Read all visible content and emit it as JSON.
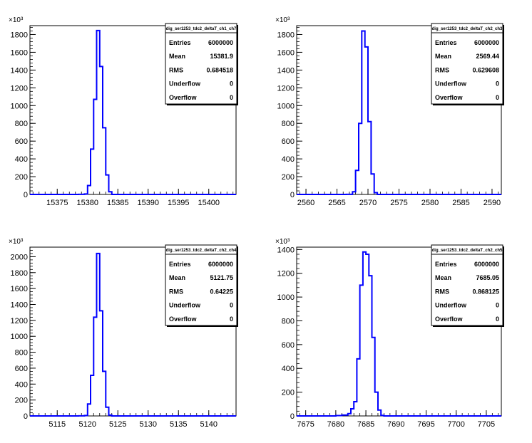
{
  "chart_data": [
    {
      "type": "line",
      "title": "dig_ser1253_tdc2_deltaT_ch1_ch7",
      "xlim": [
        15370.5,
        15404.5
      ],
      "xticks": [
        "15375",
        "15380",
        "15385",
        "15390",
        "15395",
        "15400"
      ],
      "xtick_values": [
        15375,
        15380,
        15385,
        15390,
        15395,
        15400
      ],
      "ylim": [
        0,
        1900
      ],
      "yticks": [
        "0",
        "200",
        "400",
        "600",
        "800",
        "1000",
        "1200",
        "1400",
        "1600",
        "1800"
      ],
      "ytick_values": [
        0,
        200,
        400,
        600,
        800,
        1000,
        1200,
        1400,
        1600,
        1800
      ],
      "yexponent": "×10³",
      "bin_edges": [
        15378.5,
        15379.5,
        15380.0,
        15380.5,
        15381.0,
        15381.5,
        15382.0,
        15382.5,
        15383.0,
        15383.5,
        15384.0
      ],
      "counts": [
        0.5,
        5,
        100,
        510,
        1070,
        1845,
        1440,
        750,
        220,
        30
      ],
      "stats": {
        "rows": [
          {
            "label": "Entries",
            "value": "6000000"
          },
          {
            "label": "Mean",
            "value": "15381.9"
          },
          {
            "label": "RMS",
            "value": "0.684518"
          },
          {
            "label": "Underflow",
            "value": "0"
          },
          {
            "label": "Overflow",
            "value": "0"
          }
        ]
      }
    },
    {
      "type": "line",
      "title": "dig_ser1253_tdc2_deltaT_ch2_ch3",
      "xlim": [
        2558.5,
        2591.5
      ],
      "xticks": [
        "2560",
        "2565",
        "2570",
        "2575",
        "2580",
        "2585",
        "2590"
      ],
      "xtick_values": [
        2560,
        2565,
        2570,
        2575,
        2580,
        2585,
        2590
      ],
      "ylim": [
        0,
        1900
      ],
      "yticks": [
        "0",
        "200",
        "400",
        "600",
        "800",
        "1000",
        "1200",
        "1400",
        "1600",
        "1800"
      ],
      "ytick_values": [
        0,
        200,
        400,
        600,
        800,
        1000,
        1200,
        1400,
        1600,
        1800
      ],
      "yexponent": "×10³",
      "bin_edges": [
        2566.5,
        2567.5,
        2568.0,
        2568.5,
        2569.0,
        2569.5,
        2570.0,
        2570.5,
        2571.0,
        2571.5
      ],
      "counts": [
        1,
        30,
        270,
        800,
        1840,
        1660,
        820,
        230,
        20
      ],
      "stats": {
        "rows": [
          {
            "label": "Entries",
            "value": "6000000"
          },
          {
            "label": "Mean",
            "value": "2569.44"
          },
          {
            "label": "RMS",
            "value": "0.629608"
          },
          {
            "label": "Underflow",
            "value": "0"
          },
          {
            "label": "Overflow",
            "value": "0"
          }
        ]
      }
    },
    {
      "type": "line",
      "title": "dig_ser1253_tdc2_deltaT_ch2_ch4",
      "xlim": [
        5110.5,
        5144.5
      ],
      "xticks": [
        "5115",
        "5120",
        "5125",
        "5130",
        "5135",
        "5140"
      ],
      "xtick_values": [
        5115,
        5120,
        5125,
        5130,
        5135,
        5140
      ],
      "ylim": [
        0,
        2120
      ],
      "yticks": [
        "0",
        "200",
        "400",
        "600",
        "800",
        "1000",
        "1200",
        "1400",
        "1600",
        "1800",
        "2000"
      ],
      "ytick_values": [
        0,
        200,
        400,
        600,
        800,
        1000,
        1200,
        1400,
        1600,
        1800,
        2000
      ],
      "yexponent": "×10³",
      "bin_edges": [
        5118.5,
        5119.5,
        5120.0,
        5120.5,
        5121.0,
        5121.5,
        5122.0,
        5122.5,
        5123.0,
        5123.5,
        5124.0
      ],
      "counts": [
        0.5,
        5,
        150,
        510,
        1240,
        2040,
        1320,
        560,
        110,
        10
      ],
      "stats": {
        "rows": [
          {
            "label": "Entries",
            "value": "6000000"
          },
          {
            "label": "Mean",
            "value": "5121.75"
          },
          {
            "label": "RMS",
            "value": "0.64225"
          },
          {
            "label": "Underflow",
            "value": "0"
          },
          {
            "label": "Overflow",
            "value": "0"
          }
        ]
      }
    },
    {
      "type": "line",
      "title": "dig_ser1253_tdc2_deltaT_ch2_ch5",
      "xlim": [
        7673.5,
        7707.5
      ],
      "xticks": [
        "7675",
        "7680",
        "7685",
        "7690",
        "7695",
        "7700",
        "7705"
      ],
      "xtick_values": [
        7675,
        7680,
        7685,
        7690,
        7695,
        7700,
        7705
      ],
      "ylim": [
        0,
        1420
      ],
      "yticks": [
        "0",
        "200",
        "400",
        "600",
        "800",
        "1000",
        "1200",
        "1400"
      ],
      "ytick_values": [
        0,
        200,
        400,
        600,
        800,
        1000,
        1200,
        1400
      ],
      "yexponent": "×10³",
      "bin_edges": [
        7680.0,
        7681.0,
        7682.0,
        7682.5,
        7683.0,
        7683.5,
        7684.0,
        7684.5,
        7685.0,
        7685.5,
        7686.0,
        7686.5,
        7687.0,
        7687.5,
        7688.0
      ],
      "counts": [
        3,
        8,
        20,
        60,
        120,
        480,
        1100,
        1380,
        1360,
        1180,
        660,
        200,
        50,
        5
      ],
      "stats": {
        "rows": [
          {
            "label": "Entries",
            "value": "6000000"
          },
          {
            "label": "Mean",
            "value": "7685.05"
          },
          {
            "label": "RMS",
            "value": "0.868125"
          },
          {
            "label": "Underflow",
            "value": "0"
          },
          {
            "label": "Overflow",
            "value": "0"
          }
        ]
      }
    }
  ]
}
